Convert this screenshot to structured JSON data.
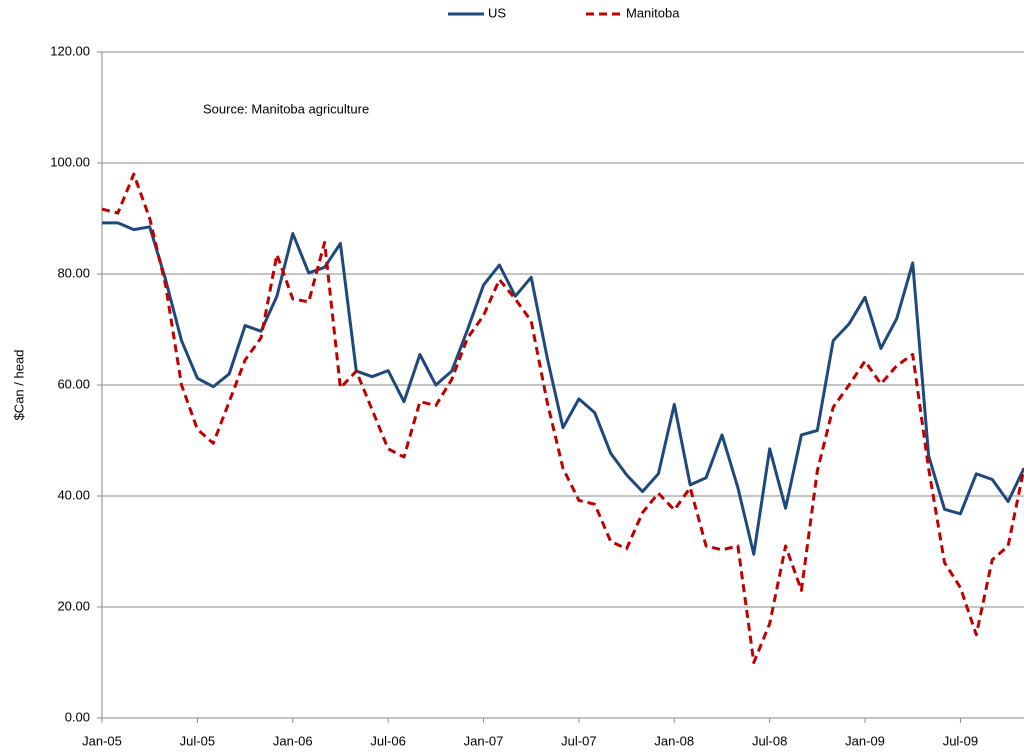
{
  "chart_data": {
    "type": "line",
    "legend": "top",
    "annotation": "Source: Manitoba agriculture",
    "y_label": "$Can / head",
    "categories": [
      "Jan-05",
      null,
      null,
      null,
      null,
      null,
      "Jul-05",
      null,
      null,
      null,
      null,
      null,
      "Jan-06",
      null,
      null,
      null,
      null,
      null,
      "Jul-06",
      null,
      null,
      null,
      null,
      null,
      "Jan-07",
      null,
      null,
      null,
      null,
      null,
      "Jul-07",
      null,
      null,
      null,
      null,
      null,
      "Jan-08",
      null,
      null,
      null,
      null,
      null,
      "Jul-08",
      null,
      null,
      null,
      null,
      null,
      "Jan-09",
      null,
      null,
      null,
      null,
      null,
      "Jul-09",
      null,
      null,
      null,
      null
    ],
    "series": [
      {
        "name": "US",
        "color": "#1f497d",
        "dash": false,
        "values": [
          89.2,
          89.2,
          88,
          88.5,
          79,
          68,
          61.2,
          59.7,
          62,
          70.7,
          69.7,
          76,
          87.3,
          80.2,
          81.2,
          85.5,
          62.5,
          61.5,
          62.6,
          57,
          65.5,
          60,
          62.5,
          70,
          78,
          81.6,
          76,
          79.4,
          65,
          52.3,
          57.5,
          55,
          47.7,
          43.8,
          40.8,
          44,
          56.5,
          42,
          43.3,
          51,
          41.5,
          29.5,
          48.5,
          37.8,
          51,
          51.8,
          68,
          71,
          75.8,
          66.6,
          72,
          82,
          47.3,
          37.6,
          36.8,
          44,
          43,
          39,
          45
        ]
      },
      {
        "name": "Manitoba",
        "color": "#c00000",
        "dash": true,
        "values": [
          91.7,
          91,
          98,
          90,
          78,
          60,
          52,
          49.5,
          57,
          64.5,
          68.5,
          83.5,
          75.5,
          75,
          85.7,
          59.5,
          62.5,
          55.5,
          48.5,
          47,
          57,
          56.3,
          61,
          68.5,
          72.5,
          79,
          75.5,
          71.5,
          57,
          45,
          39.2,
          38.5,
          31.8,
          30.5,
          37,
          40.5,
          37.5,
          41.5,
          31,
          30.3,
          31,
          10,
          17,
          31,
          23,
          44.5,
          56,
          60,
          64.3,
          60.2,
          63.5,
          65.5,
          45,
          28,
          23.5,
          15,
          28.5,
          31,
          45
        ]
      }
    ],
    "ylim": [
      0,
      120
    ],
    "yticks": [
      {
        "value": 0,
        "label": "0.00"
      },
      {
        "value": 20,
        "label": "20.00"
      },
      {
        "value": 40,
        "label": "40.00"
      },
      {
        "value": 60,
        "label": "60.00"
      },
      {
        "value": 80,
        "label": "80.00"
      },
      {
        "value": 100,
        "label": "100.00"
      },
      {
        "value": 120,
        "label": "120.00"
      }
    ],
    "grid": true
  }
}
